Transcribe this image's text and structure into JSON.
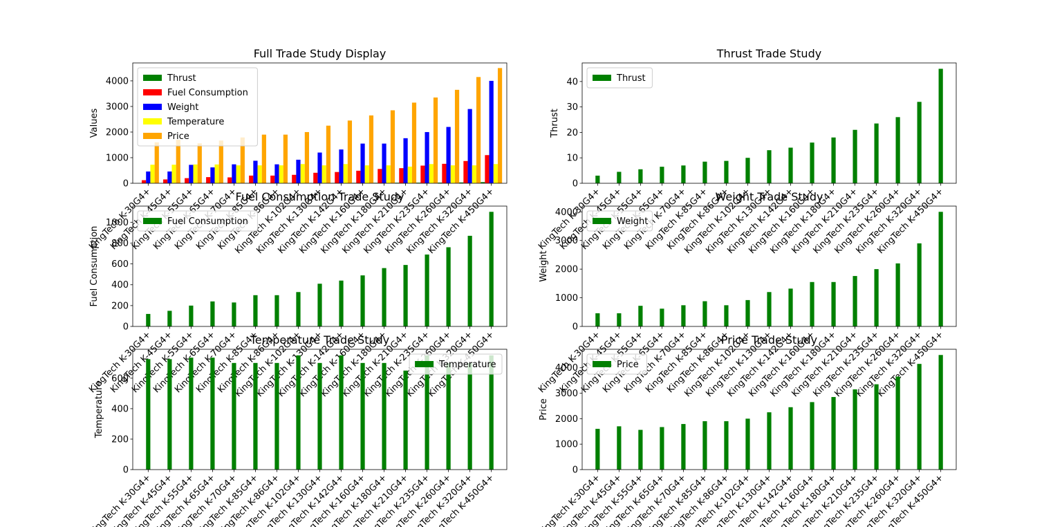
{
  "chart_data": [
    {
      "type": "bar",
      "title": "Full Trade Study Display",
      "xlabel": "",
      "ylabel": "Values",
      "categories": [
        "KingTech K-30G4+",
        "KingTech K-45G4+",
        "KingTech K-55G4+",
        "KingTech K-65G4+",
        "KingTech K-70G4+",
        "KingTech K-85G4+",
        "KingTech K-86G4+",
        "KingTech K-102G4+",
        "KingTech K-130G4+",
        "KingTech K-142G4+",
        "KingTech K-160G4+",
        "KingTech K-180G4+",
        "KingTech K-210G4+",
        "KingTech K-235G4+",
        "KingTech K-260G4+",
        "KingTech K-320G4+",
        "KingTech K-450G4+"
      ],
      "ylim": [
        0,
        4700
      ],
      "yticks": [
        0,
        1000,
        2000,
        3000,
        4000
      ],
      "legend": "upper-left",
      "series": [
        {
          "name": "Thrust",
          "color": "#008000",
          "values": [
            3,
            4.5,
            5.5,
            6.5,
            7,
            8.5,
            8.8,
            10,
            13,
            14,
            16,
            18,
            21,
            23.5,
            26,
            32,
            45
          ]
        },
        {
          "name": "Fuel Consumption",
          "color": "#ff0000",
          "values": [
            120,
            150,
            200,
            240,
            230,
            300,
            300,
            330,
            410,
            440,
            490,
            560,
            590,
            690,
            760,
            870,
            1100
          ]
        },
        {
          "name": "Weight",
          "color": "#0000ff",
          "values": [
            460,
            460,
            720,
            620,
            740,
            880,
            740,
            920,
            1200,
            1320,
            1550,
            1550,
            1760,
            2000,
            2200,
            2900,
            4000
          ]
        },
        {
          "name": "Temperature",
          "color": "#ffff00",
          "values": [
            725,
            725,
            735,
            735,
            700,
            700,
            700,
            750,
            700,
            750,
            700,
            700,
            650,
            750,
            700,
            700,
            750
          ]
        },
        {
          "name": "Price",
          "color": "#ffa500",
          "values": [
            1600,
            1700,
            1560,
            1670,
            1790,
            1900,
            1900,
            2000,
            2250,
            2450,
            2650,
            2850,
            3150,
            3350,
            3650,
            4150,
            4500
          ]
        }
      ]
    },
    {
      "type": "bar",
      "title": "Thrust Trade Study",
      "xlabel": "",
      "ylabel": "Thrust",
      "categories": [
        "KingTech K-30G4+",
        "KingTech K-45G4+",
        "KingTech K-55G4+",
        "KingTech K-65G4+",
        "KingTech K-70G4+",
        "KingTech K-85G4+",
        "KingTech K-86G4+",
        "KingTech K-102G4+",
        "KingTech K-130G4+",
        "KingTech K-142G4+",
        "KingTech K-160G4+",
        "KingTech K-180G4+",
        "KingTech K-210G4+",
        "KingTech K-235G4+",
        "KingTech K-260G4+",
        "KingTech K-320G4+",
        "KingTech K-450G4+"
      ],
      "ylim": [
        0,
        47.3
      ],
      "yticks": [
        0,
        10,
        20,
        30,
        40
      ],
      "legend": "upper-left",
      "series": [
        {
          "name": "Thrust",
          "color": "#008000",
          "values": [
            3,
            4.5,
            5.5,
            6.5,
            7,
            8.5,
            8.8,
            10,
            13,
            14,
            16,
            18,
            21,
            23.5,
            26,
            32,
            45
          ]
        }
      ]
    },
    {
      "type": "bar",
      "title": "Fuel Consumption Trade Study",
      "xlabel": "",
      "ylabel": "Fuel Consumption",
      "categories": [
        "KingTech K-30G4+",
        "KingTech K-45G4+",
        "KingTech K-55G4+",
        "KingTech K-65G4+",
        "KingTech K-70G4+",
        "KingTech K-85G4+",
        "KingTech K-86G4+",
        "KingTech K-102G4+",
        "KingTech K-130G4+",
        "KingTech K-142G4+",
        "KingTech K-160G4+",
        "KingTech K-180G4+",
        "KingTech K-210G4+",
        "KingTech K-235G4+",
        "KingTech K-260G4+",
        "KingTech K-320G4+",
        "KingTech K-450G4+"
      ],
      "ylim": [
        0,
        1155
      ],
      "yticks": [
        0,
        200,
        400,
        600,
        800,
        1000
      ],
      "legend": "upper-left",
      "series": [
        {
          "name": "Fuel Consumption",
          "color": "#008000",
          "values": [
            120,
            150,
            200,
            240,
            230,
            300,
            300,
            330,
            410,
            440,
            490,
            560,
            590,
            690,
            760,
            870,
            1100
          ]
        }
      ]
    },
    {
      "type": "bar",
      "title": "Weight Trade Study",
      "xlabel": "",
      "ylabel": "Weight",
      "categories": [
        "KingTech K-30G4+",
        "KingTech K-45G4+",
        "KingTech K-55G4+",
        "KingTech K-65G4+",
        "KingTech K-70G4+",
        "KingTech K-85G4+",
        "KingTech K-86G4+",
        "KingTech K-102G4+",
        "KingTech K-130G4+",
        "KingTech K-142G4+",
        "KingTech K-160G4+",
        "KingTech K-180G4+",
        "KingTech K-210G4+",
        "KingTech K-235G4+",
        "KingTech K-260G4+",
        "KingTech K-320G4+",
        "KingTech K-450G4+"
      ],
      "ylim": [
        0,
        4200
      ],
      "yticks": [
        0,
        1000,
        2000,
        3000,
        4000
      ],
      "legend": "upper-left",
      "series": [
        {
          "name": "Weight",
          "color": "#008000",
          "values": [
            460,
            460,
            720,
            620,
            740,
            880,
            740,
            920,
            1200,
            1320,
            1550,
            1550,
            1760,
            2000,
            2200,
            2900,
            4000
          ]
        }
      ]
    },
    {
      "type": "bar",
      "title": "Temperature Trade Study",
      "xlabel": "",
      "ylabel": "Temperature",
      "categories": [
        "KingTech K-30G4+",
        "KingTech K-45G4+",
        "KingTech K-55G4+",
        "KingTech K-65G4+",
        "KingTech K-70G4+",
        "KingTech K-85G4+",
        "KingTech K-86G4+",
        "KingTech K-102G4+",
        "KingTech K-130G4+",
        "KingTech K-142G4+",
        "KingTech K-160G4+",
        "KingTech K-180G4+",
        "KingTech K-210G4+",
        "KingTech K-235G4+",
        "KingTech K-260G4+",
        "KingTech K-320G4+",
        "KingTech K-450G4+"
      ],
      "ylim": [
        0,
        790
      ],
      "yticks": [
        0,
        200,
        400,
        600
      ],
      "legend": "upper-right",
      "series": [
        {
          "name": "Temperature",
          "color": "#008000",
          "values": [
            725,
            725,
            735,
            735,
            700,
            700,
            700,
            750,
            700,
            750,
            700,
            700,
            650,
            750,
            700,
            700,
            750
          ]
        }
      ]
    },
    {
      "type": "bar",
      "title": "Price Trade Study",
      "xlabel": "",
      "ylabel": "Price",
      "categories": [
        "KingTech K-30G4+",
        "KingTech K-45G4+",
        "KingTech K-55G4+",
        "KingTech K-65G4+",
        "KingTech K-70G4+",
        "KingTech K-85G4+",
        "KingTech K-86G4+",
        "KingTech K-102G4+",
        "KingTech K-130G4+",
        "KingTech K-142G4+",
        "KingTech K-160G4+",
        "KingTech K-180G4+",
        "KingTech K-210G4+",
        "KingTech K-235G4+",
        "KingTech K-260G4+",
        "KingTech K-320G4+",
        "KingTech K-450G4+"
      ],
      "ylim": [
        0,
        4725
      ],
      "yticks": [
        0,
        1000,
        2000,
        3000,
        4000
      ],
      "legend": "upper-left",
      "series": [
        {
          "name": "Price",
          "color": "#008000",
          "values": [
            1600,
            1700,
            1560,
            1670,
            1790,
            1900,
            1900,
            2000,
            2250,
            2450,
            2650,
            2850,
            3150,
            3350,
            3650,
            4150,
            4500
          ]
        }
      ]
    }
  ]
}
